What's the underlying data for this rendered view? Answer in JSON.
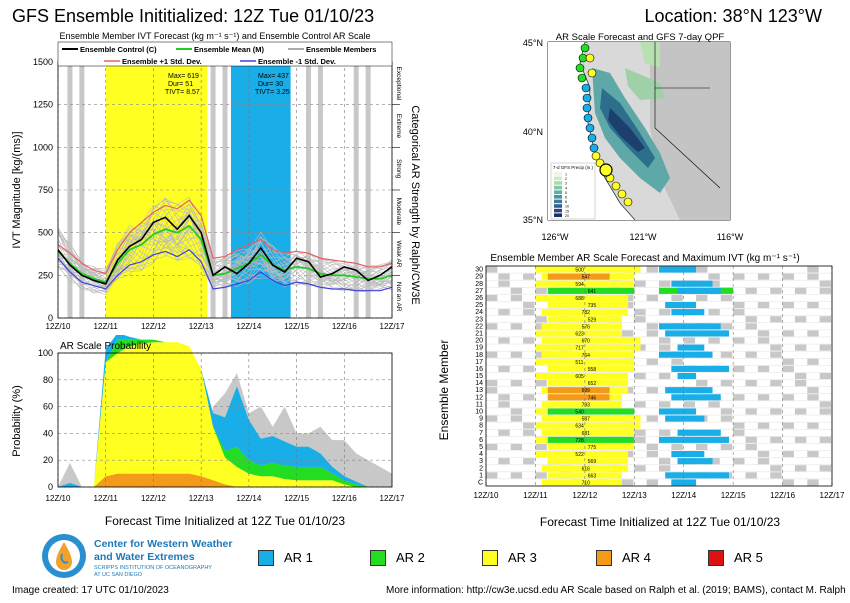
{
  "header": {
    "title_left": "GFS Ensemble Inititialized: 12Z Tue 01/10/23",
    "title_right": "Location: 38°N 123°W"
  },
  "time_ticks": [
    "12Z/10",
    "12Z/11",
    "12Z/12",
    "12Z/13",
    "12Z/14",
    "12Z/15",
    "12Z/16",
    "12Z/17"
  ],
  "shared_xlabel": "Forecast Time Initialized at 12Z Tue 01/10/23",
  "colors": {
    "ar1": "#1aaee8",
    "ar2": "#22dd22",
    "ar3": "#ffff22",
    "ar4": "#f39a1a",
    "ar5": "#dd1111",
    "gray": "#c8c8c8"
  },
  "ivt_panel": {
    "title": "Ensemble Member IVT Forecast (kg m⁻¹ s⁻¹) and Ensemble Control AR Scale",
    "ylabel": "IVT Magnitude [kg/(ms)]",
    "right_label": "Categorical AR Strength by Ralph/CW3E",
    "categories": [
      "Exceptional",
      "Extreme",
      "Strong",
      "Moderate",
      "Weak AR",
      "Not an AR"
    ],
    "legend": {
      "control": "Ensemble Control (C)",
      "mean": "Ensemble Mean (M)",
      "members": "Ensemble Members",
      "plus_sd": "Ensemble +1 Std. Dev.",
      "minus_sd": "Ensemble -1 Std. Dev."
    },
    "stats_box1": [
      "Max= 619",
      "Dur= 51",
      "TIVT= 8.57"
    ],
    "stats_box2": [
      "Max= 437",
      "Dur= 30",
      "TIVT= 3.25"
    ]
  },
  "prob_panel": {
    "title": "AR Scale Probability",
    "ylabel": "Probability (%)"
  },
  "map_panel": {
    "title": "AR Scale Forecast and GFS 7-day QPF",
    "lat_labels": [
      "45°N",
      "40°N",
      "35°N"
    ],
    "lon_labels": [
      "126°W",
      "121°W",
      "116°W"
    ],
    "qpf_legend_title": "7-d GFS Precip (in.)",
    "qpf_legend_values": [
      "1",
      "2",
      "3",
      "4",
      "5",
      "6",
      "8",
      "10",
      "15",
      "20"
    ]
  },
  "member_panel": {
    "title": "Ensemble Member AR Scale Forecast and Maximum IVT (kg m⁻¹ s⁻¹)",
    "ylabel": "Ensemble Member",
    "rows": [
      "30",
      "29",
      "28",
      "27",
      "26",
      "25",
      "24",
      "23",
      "22",
      "21",
      "20",
      "19",
      "18",
      "17",
      "16",
      "15",
      "14",
      "13",
      "12",
      "11",
      "10",
      "9",
      "8",
      "7",
      "6",
      "5",
      "4",
      "3",
      "2",
      "1",
      "C"
    ]
  },
  "logo": {
    "line1": "Center for Western Weather",
    "line2": "and Water Extremes",
    "line3": "SCRIPPS INSTITUTION OF OCEANOGRAPHY",
    "line4": "AT UC SAN DIEGO"
  },
  "ar_legend": [
    "AR 1",
    "AR 2",
    "AR 3",
    "AR 4",
    "AR 5"
  ],
  "footer": {
    "created": "Image created: 17 UTC 01/10/2023",
    "info": "More information: http://cw3e.ucsd.edu  AR Scale based on Ralph et al. (2019; BAMS), contact M. Ralph"
  },
  "chart_data": [
    {
      "type": "line",
      "title": "Ensemble Member IVT Forecast (kg m⁻¹ s⁻¹) and Ensemble Control AR Scale",
      "ylabel": "IVT Magnitude [kg/(ms)]",
      "ylim": [
        0,
        1500
      ],
      "yticks": [
        0,
        250,
        500,
        750,
        1000,
        1250,
        1500
      ],
      "x_hours": [
        0,
        6,
        12,
        18,
        24,
        30,
        36,
        42,
        48,
        54,
        60,
        66,
        72,
        78,
        84,
        90,
        96,
        102,
        108,
        114,
        120,
        126,
        132,
        138,
        144,
        150,
        156,
        162,
        168
      ],
      "series": [
        {
          "name": "Ensemble Control (C)",
          "values": [
            400,
            310,
            250,
            220,
            200,
            340,
            420,
            460,
            560,
            590,
            520,
            600,
            500,
            250,
            300,
            260,
            320,
            410,
            310,
            270,
            350,
            330,
            240,
            260,
            300,
            280,
            220,
            250,
            300
          ]
        },
        {
          "name": "Ensemble Mean (M)",
          "values": [
            390,
            320,
            260,
            230,
            210,
            320,
            400,
            430,
            490,
            520,
            500,
            540,
            460,
            250,
            260,
            290,
            320,
            370,
            310,
            280,
            300,
            290,
            260,
            250,
            250,
            240,
            230,
            230,
            250
          ]
        },
        {
          "name": "Ensemble +1 Std. Dev.",
          "values": [
            430,
            380,
            320,
            280,
            260,
            400,
            500,
            560,
            620,
            660,
            640,
            690,
            600,
            350,
            360,
            400,
            430,
            460,
            400,
            380,
            390,
            380,
            350,
            340,
            330,
            320,
            300,
            300,
            320
          ]
        },
        {
          "name": "Ensemble -1 Std. Dev.",
          "values": [
            350,
            270,
            210,
            190,
            170,
            250,
            310,
            330,
            370,
            390,
            360,
            400,
            330,
            170,
            180,
            200,
            220,
            270,
            220,
            190,
            210,
            200,
            180,
            170,
            170,
            160,
            160,
            160,
            180
          ]
        }
      ],
      "ar_periods": [
        {
          "start_hour": 24,
          "end_hour": 75,
          "category": "AR 3",
          "max": 619,
          "duration": 51,
          "tivt": 8.57
        },
        {
          "start_hour": 87,
          "end_hour": 117,
          "category": "AR 1",
          "max": 437,
          "duration": 30,
          "tivt": 3.25
        }
      ]
    },
    {
      "type": "area",
      "title": "AR Scale Probability",
      "ylabel": "Probability (%)",
      "ylim": [
        0,
        100
      ],
      "yticks": [
        0,
        20,
        40,
        60,
        80,
        100
      ],
      "x_hours": [
        0,
        6,
        12,
        18,
        24,
        30,
        36,
        42,
        48,
        54,
        60,
        66,
        72,
        78,
        84,
        90,
        96,
        102,
        108,
        114,
        120,
        126,
        132,
        138,
        144,
        150,
        156,
        162,
        168
      ],
      "series": [
        {
          "name": "AR 1",
          "values": [
            0,
            3,
            0,
            0,
            10,
            5,
            2,
            0,
            0,
            0,
            0,
            0,
            0,
            10,
            25,
            45,
            30,
            20,
            20,
            18,
            15,
            15,
            10,
            5,
            3,
            2,
            0,
            0,
            0
          ]
        },
        {
          "name": "AR 2",
          "values": [
            0,
            0,
            0,
            0,
            0,
            10,
            5,
            3,
            2,
            0,
            0,
            0,
            0,
            0,
            5,
            15,
            10,
            8,
            10,
            10,
            10,
            10,
            10,
            5,
            3,
            2,
            0,
            0,
            0
          ]
        },
        {
          "name": "AR 3",
          "values": [
            0,
            0,
            0,
            0,
            85,
            90,
            95,
            97,
            98,
            98,
            98,
            95,
            80,
            40,
            20,
            15,
            10,
            8,
            8,
            6,
            5,
            5,
            5,
            5,
            2,
            0,
            0,
            0,
            0
          ]
        },
        {
          "name": "AR 4",
          "values": [
            0,
            0,
            0,
            0,
            8,
            10,
            10,
            10,
            10,
            10,
            10,
            10,
            8,
            5,
            2,
            0,
            0,
            0,
            0,
            0,
            0,
            0,
            0,
            0,
            0,
            0,
            0,
            0,
            0
          ]
        },
        {
          "name": "AR 5",
          "values": [
            0,
            0,
            0,
            0,
            0,
            0,
            0,
            0,
            0,
            0,
            0,
            0,
            0,
            0,
            0,
            0,
            0,
            0,
            0,
            0,
            0,
            0,
            0,
            0,
            0,
            0,
            0,
            0,
            0
          ]
        }
      ]
    }
  ]
}
